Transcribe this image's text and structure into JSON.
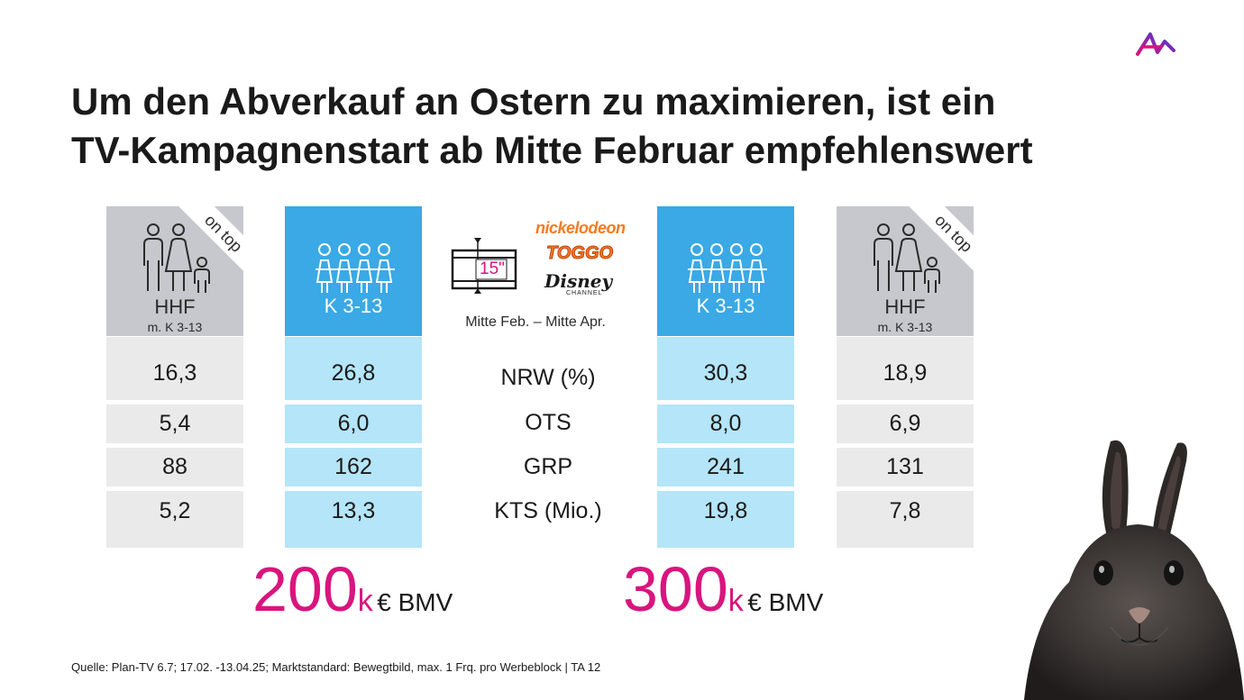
{
  "title": "Um den Abverkauf an Ostern zu maximieren, ist ein TV-Kampagnenstart ab Mitte Februar empfehlenswert",
  "columns": [
    {
      "label": "HHF",
      "sublabel": "m. K 3-13",
      "badge": "on top",
      "values": [
        "16,3",
        "5,4",
        "88",
        "5,2"
      ]
    },
    {
      "label": "K 3-13",
      "values": [
        "26,8",
        "6,0",
        "162",
        "13,3"
      ]
    },
    {
      "label": "K 3-13",
      "values": [
        "30,3",
        "8,0",
        "241",
        "19,8"
      ]
    },
    {
      "label": "HHF",
      "sublabel": "m. K 3-13",
      "badge": "on top",
      "values": [
        "18,9",
        "6,9",
        "131",
        "7,8"
      ]
    }
  ],
  "metrics": [
    "NRW (%)",
    "OTS",
    "GRP",
    "KTS (Mio.)"
  ],
  "spot": {
    "length": "15\"",
    "period": "Mitte Feb. – Mitte Apr."
  },
  "channels": [
    "nickelodeon",
    "TOGGO",
    "Disney",
    "CHANNEL"
  ],
  "budgets": [
    {
      "amount": "200",
      "unit": "k",
      "label": "€ BMV"
    },
    {
      "amount": "300",
      "unit": "k",
      "label": "€ BMV"
    }
  ],
  "source": "Quelle: Plan-TV 6.7; 17.02. -13.04.25; Marktstandard: Bewegtbild, max. 1 Frq. pro Werbeblock | TA 12",
  "colors": {
    "accent": "#d8157e",
    "blue_head": "#3aa9e5",
    "blue_cell": "#b4e5f8",
    "gray_head": "#c6c8cd",
    "gray_cell": "#eaeaeb"
  },
  "icons": [
    "brand-logo-icon",
    "family-icon",
    "children-group-icon",
    "film-strip-icon",
    "rabbit-image"
  ]
}
